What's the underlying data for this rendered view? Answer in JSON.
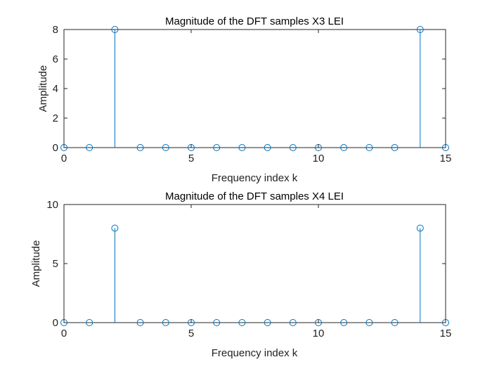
{
  "chart_data": [
    {
      "type": "stem",
      "title": "Magnitude of the DFT samples X3 LEI",
      "xlabel": "Frequency index k",
      "ylabel": "Amplitude",
      "xlim": [
        0,
        15
      ],
      "ylim": [
        0,
        8
      ],
      "xticks": [
        "0",
        "5",
        "10",
        "15"
      ],
      "yticks": [
        "0",
        "2",
        "4",
        "6",
        "8"
      ],
      "color": "#0072bd",
      "x": [
        0,
        1,
        2,
        3,
        4,
        5,
        6,
        7,
        8,
        9,
        10,
        11,
        12,
        13,
        14,
        15
      ],
      "values": [
        0,
        0,
        8,
        0,
        0,
        0,
        0,
        0,
        0,
        0,
        0,
        0,
        0,
        0,
        8,
        0
      ]
    },
    {
      "type": "stem",
      "title": "Magnitude of the DFT samples X4 LEI",
      "xlabel": "Frequency index k",
      "ylabel": "Amplitude",
      "xlim": [
        0,
        15
      ],
      "ylim": [
        0,
        10
      ],
      "xticks": [
        "0",
        "5",
        "10",
        "15"
      ],
      "yticks": [
        "0",
        "5",
        "10"
      ],
      "color": "#0072bd",
      "x": [
        0,
        1,
        2,
        3,
        4,
        5,
        6,
        7,
        8,
        9,
        10,
        11,
        12,
        13,
        14,
        15
      ],
      "values": [
        0,
        0,
        8,
        0,
        0,
        0,
        0,
        0,
        0,
        0,
        0,
        0,
        0,
        0,
        8,
        0
      ]
    }
  ]
}
